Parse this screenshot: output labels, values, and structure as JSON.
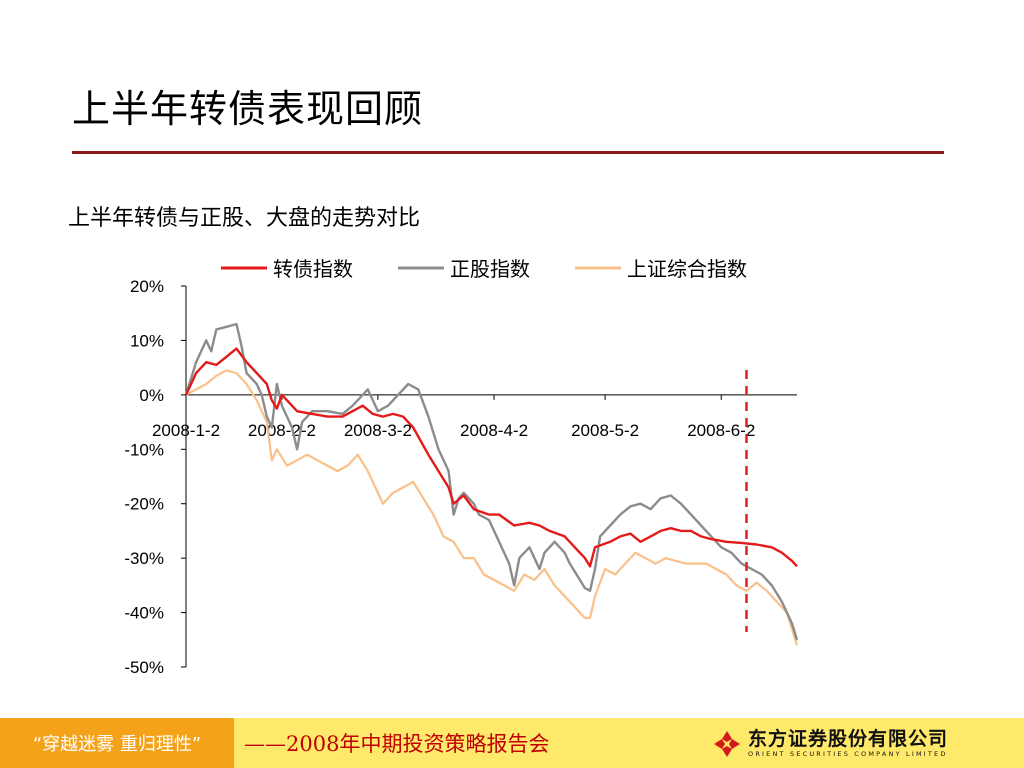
{
  "slide": {
    "title": "上半年转债表现回顾",
    "subtitle": "上半年转债与正股、大盘的走势对比"
  },
  "footer": {
    "slogan": "“穿越迷雾   重归理性”",
    "event": "——2008年中期投资策略报告会",
    "logo_cn": "东方证券股份有限公司",
    "logo_en": "ORIENT SECURITIES COMPANY LIMITED"
  },
  "chart_data": {
    "type": "line",
    "title": "",
    "xlabel": "",
    "ylabel": "",
    "ylim": [
      -50,
      20
    ],
    "xlim": [
      0,
      121
    ],
    "yticks": [
      20,
      10,
      0,
      -10,
      -20,
      -30,
      -40,
      -50
    ],
    "ytick_labels": [
      "20%",
      "10%",
      "0%",
      "-10%",
      "-20%",
      "-30%",
      "-40%",
      "-50%"
    ],
    "xticks": [
      0,
      19,
      38,
      61,
      83,
      106
    ],
    "xtick_labels": [
      "2008-1-2",
      "2008-2-2",
      "2008-3-2",
      "2008-4-2",
      "2008-5-2",
      "2008-6-2"
    ],
    "legend_position": "top",
    "marker_line": {
      "x": 111,
      "color": "#e02020",
      "style": "dashed"
    },
    "series": [
      {
        "name": "转债指数",
        "color": "#e41a1a",
        "width": 2.4,
        "points": [
          [
            0,
            0
          ],
          [
            2,
            4
          ],
          [
            4,
            6
          ],
          [
            6,
            5.5
          ],
          [
            8,
            7
          ],
          [
            10,
            8.5
          ],
          [
            12,
            6
          ],
          [
            14,
            4
          ],
          [
            16,
            2
          ],
          [
            17,
            -1
          ],
          [
            18,
            -2.5
          ],
          [
            19,
            0
          ],
          [
            20,
            -1
          ],
          [
            22,
            -3
          ],
          [
            25,
            -3.5
          ],
          [
            28,
            -4
          ],
          [
            31,
            -4
          ],
          [
            33,
            -3
          ],
          [
            35,
            -2
          ],
          [
            37,
            -3.5
          ],
          [
            39,
            -4
          ],
          [
            41,
            -3.5
          ],
          [
            43,
            -4
          ],
          [
            45,
            -6
          ],
          [
            48,
            -11
          ],
          [
            50,
            -14
          ],
          [
            52,
            -17
          ],
          [
            53,
            -20
          ],
          [
            55,
            -18.5
          ],
          [
            57,
            -21
          ],
          [
            60,
            -22
          ],
          [
            62,
            -22
          ],
          [
            65,
            -24
          ],
          [
            68,
            -23.5
          ],
          [
            70,
            -24
          ],
          [
            72,
            -25
          ],
          [
            75,
            -26
          ],
          [
            77,
            -28
          ],
          [
            79,
            -30
          ],
          [
            80,
            -31.5
          ],
          [
            81,
            -28
          ],
          [
            84,
            -27
          ],
          [
            86,
            -26
          ],
          [
            88,
            -25.5
          ],
          [
            90,
            -27
          ],
          [
            92,
            -26
          ],
          [
            94,
            -25
          ],
          [
            96,
            -24.5
          ],
          [
            98,
            -25
          ],
          [
            100,
            -25
          ],
          [
            102,
            -26
          ],
          [
            104,
            -26.5
          ],
          [
            107,
            -27
          ],
          [
            110,
            -27.2
          ],
          [
            113,
            -27.5
          ],
          [
            116,
            -28
          ],
          [
            118,
            -29
          ],
          [
            120,
            -30.5
          ],
          [
            121,
            -31.5
          ]
        ]
      },
      {
        "name": "正股指数",
        "color": "#8c8c8c",
        "width": 2.4,
        "points": [
          [
            0,
            0
          ],
          [
            2,
            6
          ],
          [
            4,
            10
          ],
          [
            5,
            8
          ],
          [
            6,
            12
          ],
          [
            8,
            12.5
          ],
          [
            10,
            13
          ],
          [
            11,
            9
          ],
          [
            12,
            4
          ],
          [
            14,
            2
          ],
          [
            15,
            0
          ],
          [
            16,
            -4
          ],
          [
            17,
            -6
          ],
          [
            18,
            2
          ],
          [
            19,
            -2
          ],
          [
            20,
            -4
          ],
          [
            21,
            -6
          ],
          [
            22,
            -10
          ],
          [
            23,
            -5
          ],
          [
            25,
            -3
          ],
          [
            28,
            -3
          ],
          [
            31,
            -3.5
          ],
          [
            33,
            -2
          ],
          [
            35,
            0
          ],
          [
            36,
            1
          ],
          [
            37,
            -1
          ],
          [
            38,
            -3
          ],
          [
            40,
            -2
          ],
          [
            42,
            0
          ],
          [
            44,
            2
          ],
          [
            46,
            1
          ],
          [
            48,
            -4
          ],
          [
            50,
            -10
          ],
          [
            52,
            -14
          ],
          [
            53,
            -22
          ],
          [
            54,
            -19
          ],
          [
            55,
            -18
          ],
          [
            57,
            -20
          ],
          [
            58,
            -22
          ],
          [
            60,
            -23
          ],
          [
            62,
            -27
          ],
          [
            64,
            -31
          ],
          [
            65,
            -35
          ],
          [
            66,
            -30
          ],
          [
            68,
            -28
          ],
          [
            70,
            -32
          ],
          [
            71,
            -29
          ],
          [
            73,
            -27
          ],
          [
            75,
            -29
          ],
          [
            76,
            -31
          ],
          [
            78,
            -34
          ],
          [
            79,
            -35.5
          ],
          [
            80,
            -36
          ],
          [
            81,
            -32
          ],
          [
            82,
            -26
          ],
          [
            84,
            -24
          ],
          [
            86,
            -22
          ],
          [
            88,
            -20.5
          ],
          [
            90,
            -20
          ],
          [
            92,
            -21
          ],
          [
            94,
            -19
          ],
          [
            96,
            -18.5
          ],
          [
            98,
            -20
          ],
          [
            100,
            -22
          ],
          [
            102,
            -24
          ],
          [
            104,
            -26
          ],
          [
            106,
            -28
          ],
          [
            108,
            -29
          ],
          [
            110,
            -31
          ],
          [
            112,
            -32
          ],
          [
            114,
            -33
          ],
          [
            116,
            -35
          ],
          [
            118,
            -38
          ],
          [
            120,
            -42
          ],
          [
            121,
            -45
          ]
        ]
      },
      {
        "name": "上证综合指数",
        "color": "#f9c08a",
        "width": 2.2,
        "points": [
          [
            0,
            0
          ],
          [
            2,
            1
          ],
          [
            4,
            2
          ],
          [
            6,
            3.5
          ],
          [
            8,
            4.5
          ],
          [
            10,
            4
          ],
          [
            12,
            2
          ],
          [
            14,
            -1
          ],
          [
            16,
            -5
          ],
          [
            17,
            -12
          ],
          [
            18,
            -10
          ],
          [
            20,
            -13
          ],
          [
            22,
            -12
          ],
          [
            24,
            -11
          ],
          [
            26,
            -12
          ],
          [
            28,
            -13
          ],
          [
            30,
            -14
          ],
          [
            32,
            -13
          ],
          [
            34,
            -11
          ],
          [
            36,
            -14
          ],
          [
            38,
            -18
          ],
          [
            39,
            -20
          ],
          [
            41,
            -18
          ],
          [
            43,
            -17
          ],
          [
            45,
            -16
          ],
          [
            47,
            -19
          ],
          [
            49,
            -22
          ],
          [
            51,
            -26
          ],
          [
            53,
            -27
          ],
          [
            55,
            -30
          ],
          [
            57,
            -30
          ],
          [
            59,
            -33
          ],
          [
            61,
            -34
          ],
          [
            63,
            -35
          ],
          [
            65,
            -36
          ],
          [
            67,
            -33
          ],
          [
            69,
            -34
          ],
          [
            71,
            -32
          ],
          [
            73,
            -35
          ],
          [
            75,
            -37
          ],
          [
            77,
            -39
          ],
          [
            79,
            -41
          ],
          [
            80,
            -41
          ],
          [
            81,
            -37
          ],
          [
            83,
            -32
          ],
          [
            85,
            -33
          ],
          [
            87,
            -31
          ],
          [
            89,
            -29
          ],
          [
            91,
            -30
          ],
          [
            93,
            -31
          ],
          [
            95,
            -30
          ],
          [
            97,
            -30.5
          ],
          [
            99,
            -31
          ],
          [
            101,
            -31
          ],
          [
            103,
            -31
          ],
          [
            105,
            -32
          ],
          [
            107,
            -33
          ],
          [
            109,
            -35
          ],
          [
            111,
            -36
          ],
          [
            113,
            -34.5
          ],
          [
            115,
            -36
          ],
          [
            117,
            -38
          ],
          [
            119,
            -40
          ],
          [
            121,
            -46
          ]
        ]
      }
    ]
  }
}
